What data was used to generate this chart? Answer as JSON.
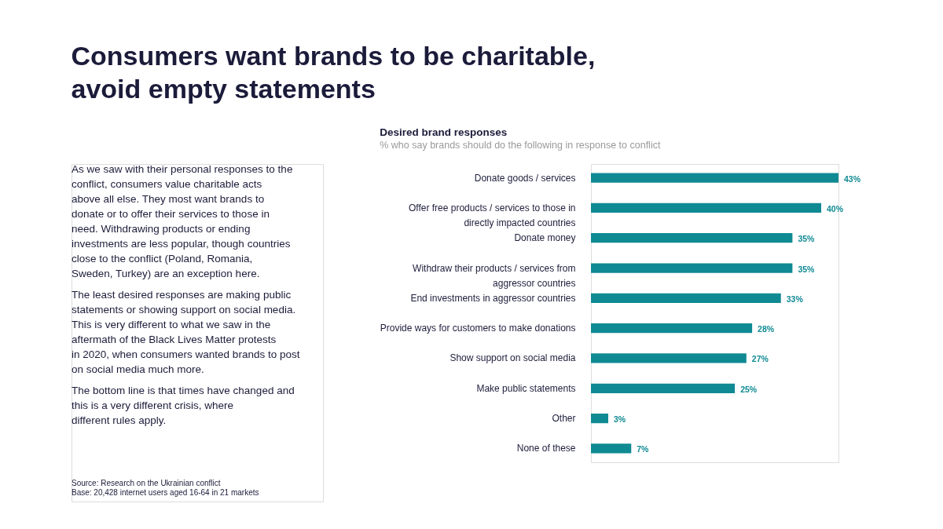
{
  "chart_data": {
    "type": "bar",
    "orientation": "horizontal",
    "title": "Consumers want brands to be charitable, avoid empty statements",
    "subtitle": "Desired brand responses",
    "categories": [
      "Donate goods / services",
      "Offer free products / services to those in directly impacted countries",
      "Donate money",
      "Withdraw their products / services from aggressor countries",
      "End investments in aggressor countries",
      "Provide ways for customers to make donations",
      "Show support on social media",
      "Make public statements",
      "Other",
      "None of these"
    ],
    "values": [
      43,
      40,
      35,
      35,
      33,
      28,
      27,
      25,
      3,
      7
    ],
    "value_labels": [
      "43%",
      "40%",
      "35%",
      "35%",
      "33%",
      "28%",
      "27%",
      "25%",
      "3%",
      "7%"
    ],
    "color": "#0f8a93",
    "annotations": [
      "% who say brands should do the following in response to conflict",
      "As we saw with their personal responses to the conflict, consumers value charitable acts above all else. They most want brands to donate or to offer their services to those in need. Withdrawing products or ending investments are less popular, though countries close to the conflict (Poland, Romania, Sweden, Turkey) are an exception here.",
      "The least desired responses are making public statements or showing support on social media. This is very different to what we saw in the aftermath of the Black Lives Matter protests in 2020, when consumers wanted brands to post on social media much more.",
      "The bottom line is that times have changed and this is a very different crisis, where different rules apply.",
      "Source: Research on the Ukrainian conflict",
      "Base: 20,428 internet users aged 16-64 in 21 markets"
    ]
  }
}
